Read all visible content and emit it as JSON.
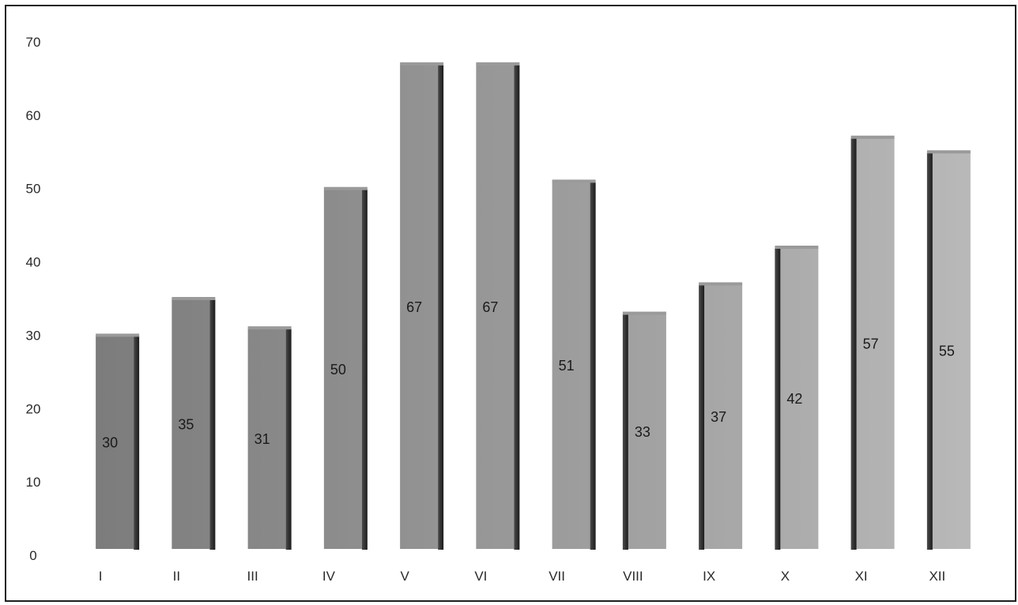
{
  "chart_data": {
    "type": "bar",
    "title": "",
    "xlabel": "",
    "ylabel": "",
    "categories": [
      "I",
      "II",
      "III",
      "IV",
      "V",
      "VI",
      "VII",
      "VIII",
      "IX",
      "X",
      "XI",
      "XII"
    ],
    "values": [
      30,
      35,
      31,
      50,
      67,
      67,
      51,
      33,
      37,
      42,
      57,
      55
    ],
    "ylim": [
      0,
      70
    ],
    "yticks": [
      0,
      10,
      20,
      30,
      40,
      50,
      60,
      70
    ],
    "grid": false,
    "legend": "none",
    "bar_colors": {
      "front_start": "#7a7a7a",
      "front_end": "#b9b9b9",
      "side_start": "#4a4a4a",
      "side_end": "#1c1c1c",
      "top": "#9a9a9a"
    }
  }
}
